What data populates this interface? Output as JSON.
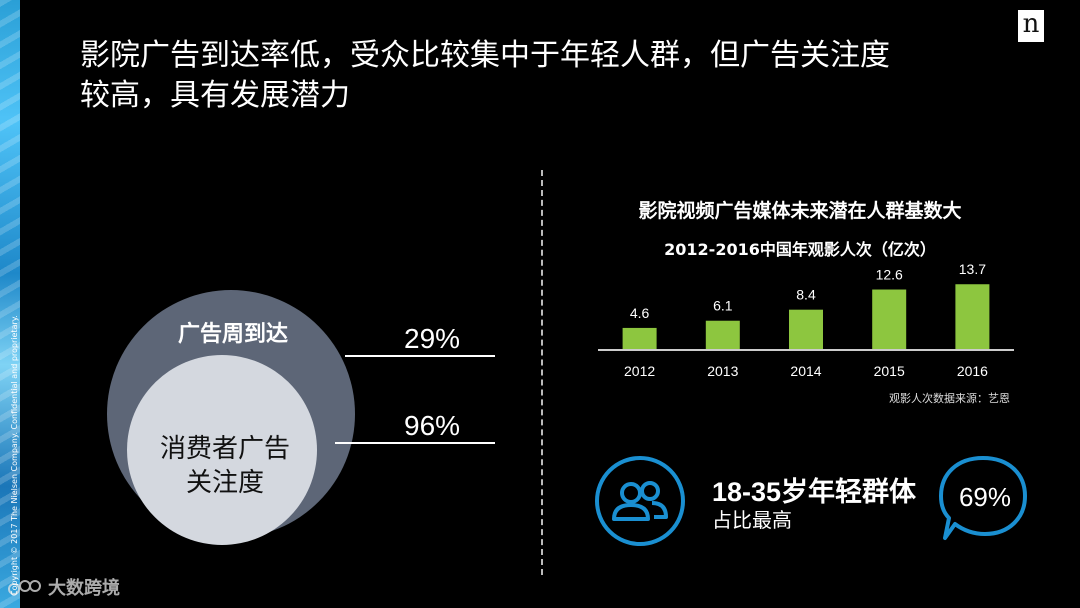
{
  "copyright": "Copyright © 2017 The Nielsen Company. Confidential and proprietary.",
  "logo_letter": "n",
  "title": "影院广告到达率低，受众比较集中于年轻人群，但广告关注度\n较高，具有发展潜力",
  "venn": {
    "outer_label": "广告周到达",
    "inner_label": "消费者广告\n关注度",
    "outer_pct": "29%",
    "inner_pct": "96%"
  },
  "chart_data": {
    "type": "bar",
    "title": "影院视频广告媒体未来潜在人群基数大",
    "subtitle": "2012-2016中国年观影人次（亿次）",
    "categories": [
      "2012",
      "2013",
      "2014",
      "2015",
      "2016"
    ],
    "values": [
      4.6,
      6.1,
      8.4,
      12.6,
      13.7
    ],
    "data_labels": [
      "4.6",
      "6.1",
      "8.4",
      "12.6",
      "13.7"
    ],
    "color": "#8dc63f",
    "ylim": [
      0,
      15
    ],
    "grid": false,
    "source": "观影人次数据来源：艺恩"
  },
  "stat": {
    "icon": "people-group-icon",
    "main": "18-35岁年轻群体",
    "sub": "占比最高",
    "bubble_value": "69%",
    "accent": "#1a8fd1"
  },
  "watermark": {
    "text": "大数跨境"
  }
}
